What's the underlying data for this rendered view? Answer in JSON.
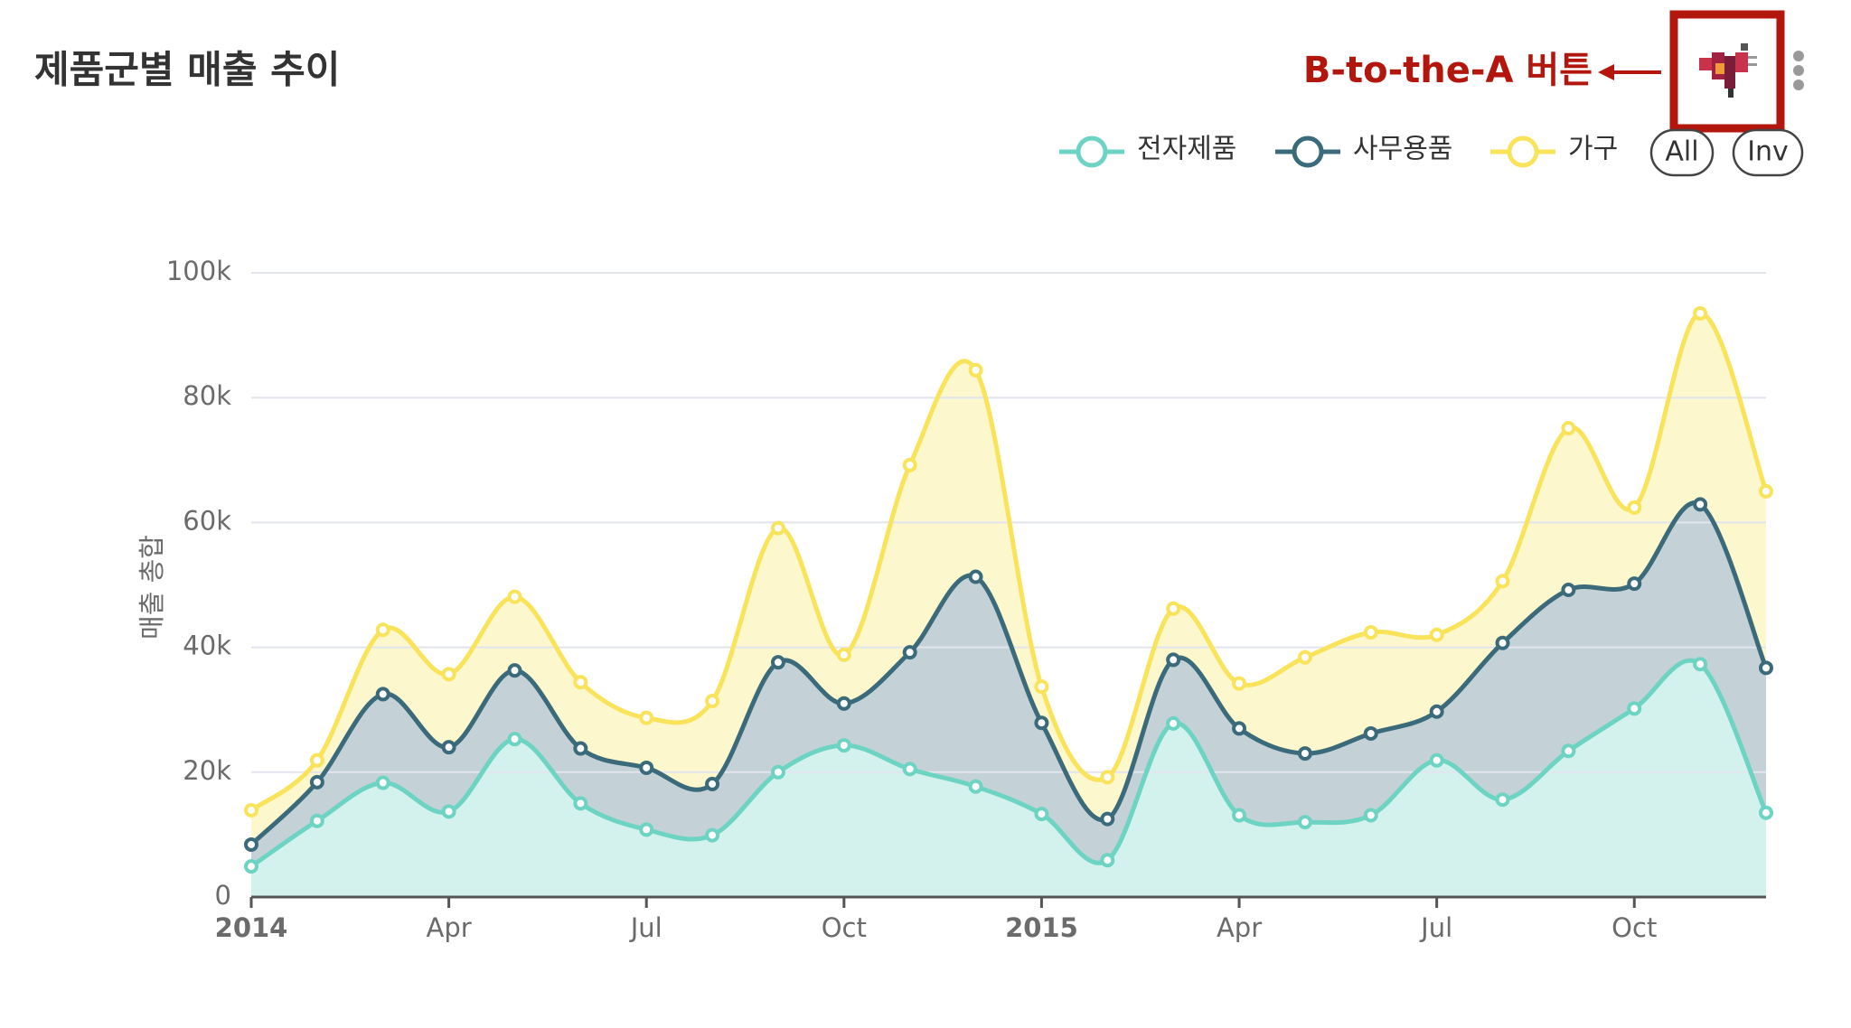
{
  "chart_data": {
    "type": "area",
    "stacked": true,
    "title": "제품군별 매출 추이",
    "annotation": "B-to-the-A 버튼",
    "buttons": [
      "All",
      "Inv"
    ],
    "ylabel": "매출 총합",
    "categories": [
      "2014",
      null,
      null,
      "Apr",
      null,
      null,
      "Jul",
      null,
      null,
      "Oct",
      null,
      null,
      "2015",
      null,
      null,
      "Apr",
      null,
      null,
      "Jul",
      null,
      null,
      "Oct",
      null,
      null
    ],
    "series": [
      {
        "name": "전자제품",
        "color": "#6dd3c3",
        "values": [
          4900,
          12200,
          18300,
          13700,
          25300,
          15000,
          10800,
          9900,
          20000,
          24300,
          20500,
          17700,
          13300,
          5900,
          27800,
          13100,
          12000,
          13100,
          21900,
          15600,
          23400,
          30200,
          37300,
          13500
        ]
      },
      {
        "name": "사무용품",
        "color": "#3b6b7b",
        "values": [
          3500,
          6200,
          14200,
          10300,
          11000,
          8800,
          9900,
          8200,
          17600,
          6700,
          18700,
          33600,
          14600,
          6600,
          10200,
          13900,
          11000,
          13100,
          7800,
          25100,
          25800,
          20000,
          25600,
          23200
        ]
      },
      {
        "name": "가구",
        "color": "#f9e35a",
        "values": [
          5500,
          3500,
          10300,
          11700,
          11800,
          10600,
          8000,
          13300,
          21500,
          7800,
          30000,
          33100,
          5800,
          6700,
          8200,
          7200,
          15400,
          16200,
          12300,
          9900,
          25900,
          12200,
          30600,
          28300
        ]
      }
    ],
    "ylim": [
      0,
      100000
    ],
    "yticks": [
      0,
      {
        "value": 20000,
        "label": "20k"
      },
      {
        "value": 40000,
        "label": "40k"
      },
      {
        "value": 60000,
        "label": "60k"
      },
      {
        "value": 80000,
        "label": "80k"
      },
      {
        "value": 100000,
        "label": "100k"
      }
    ],
    "grid": true
  }
}
